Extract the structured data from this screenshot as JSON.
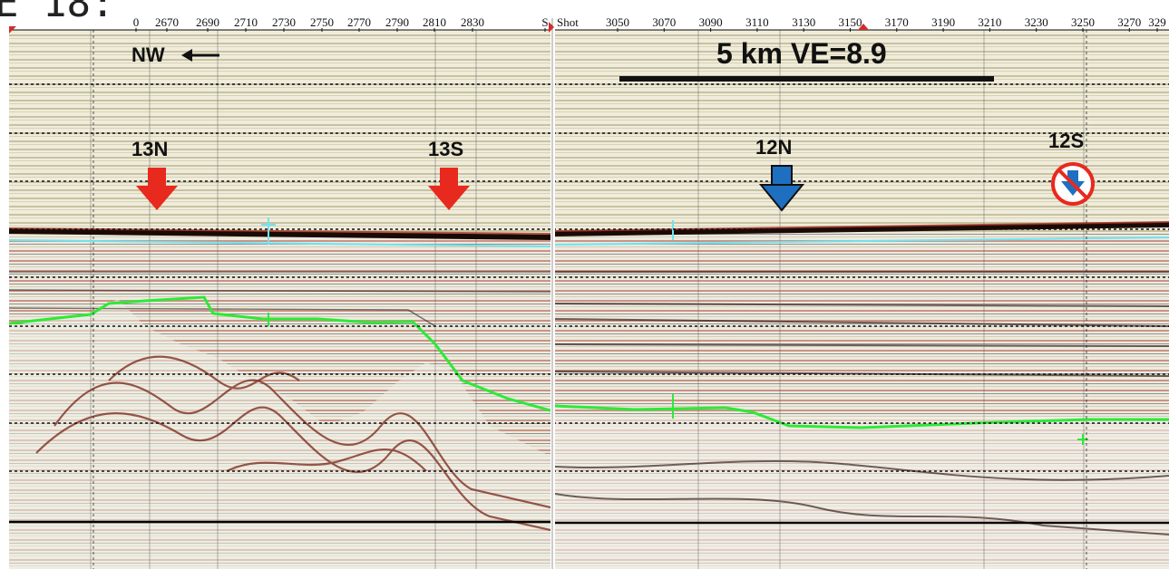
{
  "figure_ref_fragment": "E 18:",
  "left_panel": {
    "shot_ticks": [
      "0",
      "2670",
      "2690",
      "2710",
      "2730",
      "2750",
      "2770",
      "2790",
      "2810",
      "2830",
      "S"
    ],
    "direction_label": "NW",
    "markers": [
      {
        "label": "13N",
        "color": "#e8291e",
        "type": "arrow"
      },
      {
        "label": "13S",
        "color": "#e8291e",
        "type": "arrow"
      }
    ]
  },
  "right_panel": {
    "shot_axis_title": "Shot",
    "shot_ticks": [
      "3050",
      "3070",
      "3090",
      "3110",
      "3130",
      "3150",
      "3170",
      "3190",
      "3210",
      "3230",
      "3250",
      "3270",
      "329"
    ],
    "scale_label": "5 km  VE=8.9",
    "markers": [
      {
        "label": "12N",
        "color": "#1f6fc1",
        "type": "arrow"
      },
      {
        "label": "12S",
        "color": "#e8291e",
        "type": "no-sign"
      }
    ]
  },
  "colors": {
    "seafloor": "#1a0a06",
    "horizon_green": "#2cea38",
    "horizon_cyan": "#6fe3f0",
    "reflector_red": "#a33222",
    "background_tan": "#cfcdb0"
  }
}
